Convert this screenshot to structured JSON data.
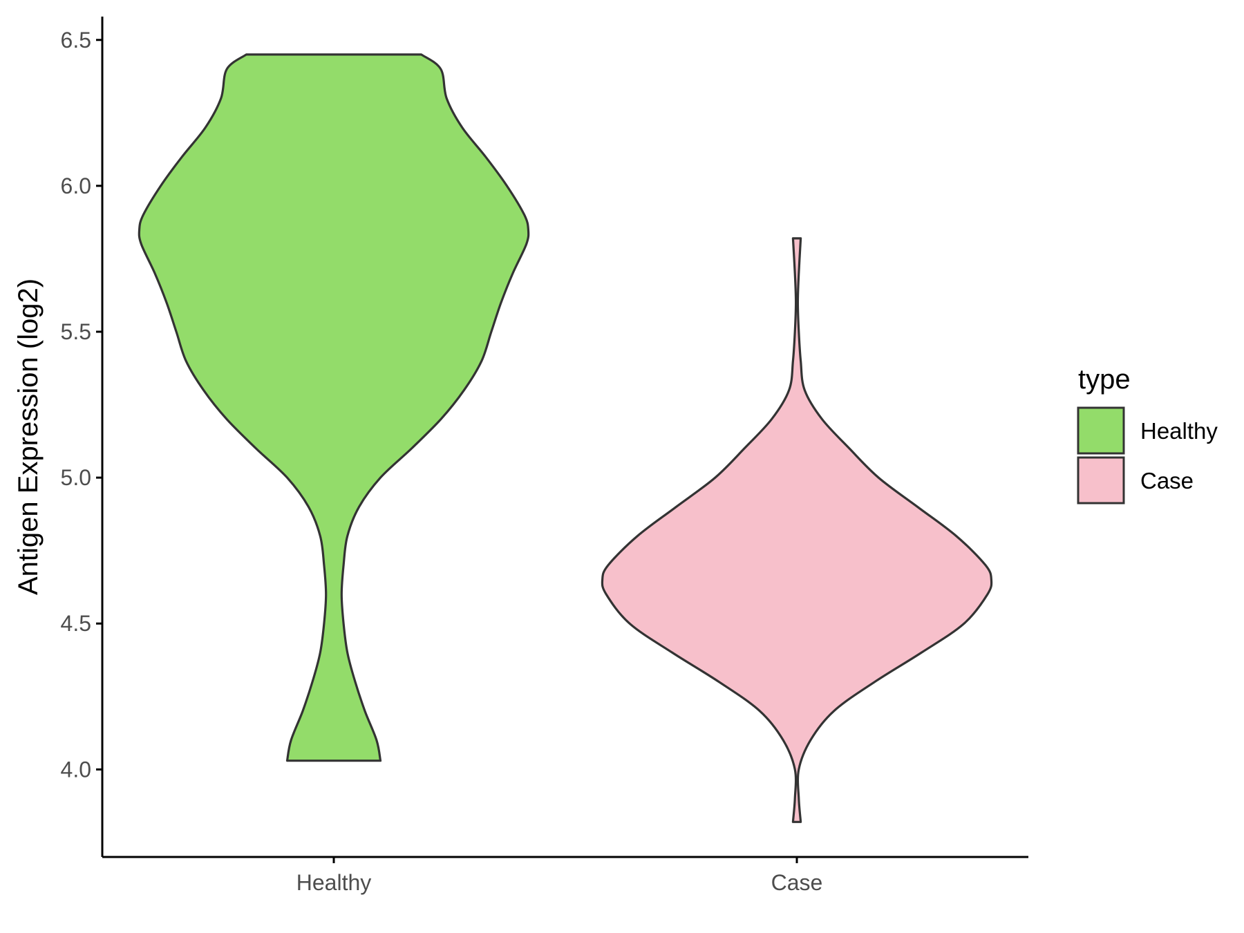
{
  "chart_data": {
    "type": "violin",
    "xlabel": "",
    "ylabel": "Antigen Expression (log2)",
    "ylim": [
      3.7,
      6.58
    ],
    "yticks": [
      "4.0",
      "4.5",
      "5.0",
      "5.5",
      "6.0",
      "6.5"
    ],
    "categories": [
      "Healthy",
      "Case"
    ],
    "grid": false,
    "legend": {
      "title": "type",
      "position": "right",
      "entries": [
        "Healthy",
        "Case"
      ]
    },
    "outline_color": "#333333",
    "series": [
      {
        "name": "Healthy",
        "color": "#93dc6a",
        "y_min": 4.03,
        "y_max": 6.45,
        "density": [
          [
            4.03,
            0.24
          ],
          [
            4.1,
            0.22
          ],
          [
            4.2,
            0.16
          ],
          [
            4.3,
            0.11
          ],
          [
            4.4,
            0.07
          ],
          [
            4.5,
            0.05
          ],
          [
            4.6,
            0.04
          ],
          [
            4.7,
            0.05
          ],
          [
            4.8,
            0.07
          ],
          [
            4.9,
            0.13
          ],
          [
            5.0,
            0.24
          ],
          [
            5.1,
            0.4
          ],
          [
            5.2,
            0.55
          ],
          [
            5.3,
            0.67
          ],
          [
            5.4,
            0.76
          ],
          [
            5.5,
            0.81
          ],
          [
            5.6,
            0.86
          ],
          [
            5.7,
            0.92
          ],
          [
            5.8,
            0.99
          ],
          [
            5.85,
            1.0
          ],
          [
            5.9,
            0.98
          ],
          [
            6.0,
            0.89
          ],
          [
            6.1,
            0.78
          ],
          [
            6.2,
            0.66
          ],
          [
            6.3,
            0.58
          ],
          [
            6.4,
            0.55
          ],
          [
            6.45,
            0.45
          ]
        ]
      },
      {
        "name": "Case",
        "color": "#f7c0cb",
        "y_min": 3.82,
        "y_max": 5.82,
        "density": [
          [
            3.82,
            0.02
          ],
          [
            3.9,
            0.01
          ],
          [
            4.0,
            0.01
          ],
          [
            4.1,
            0.07
          ],
          [
            4.2,
            0.19
          ],
          [
            4.3,
            0.4
          ],
          [
            4.4,
            0.64
          ],
          [
            4.5,
            0.86
          ],
          [
            4.6,
            0.98
          ],
          [
            4.65,
            1.0
          ],
          [
            4.7,
            0.97
          ],
          [
            4.8,
            0.82
          ],
          [
            4.9,
            0.62
          ],
          [
            5.0,
            0.42
          ],
          [
            5.1,
            0.27
          ],
          [
            5.2,
            0.13
          ],
          [
            5.3,
            0.04
          ],
          [
            5.4,
            0.02
          ],
          [
            5.5,
            0.01
          ],
          [
            5.6,
            0.005
          ],
          [
            5.7,
            0.01
          ],
          [
            5.82,
            0.02
          ]
        ]
      }
    ]
  }
}
